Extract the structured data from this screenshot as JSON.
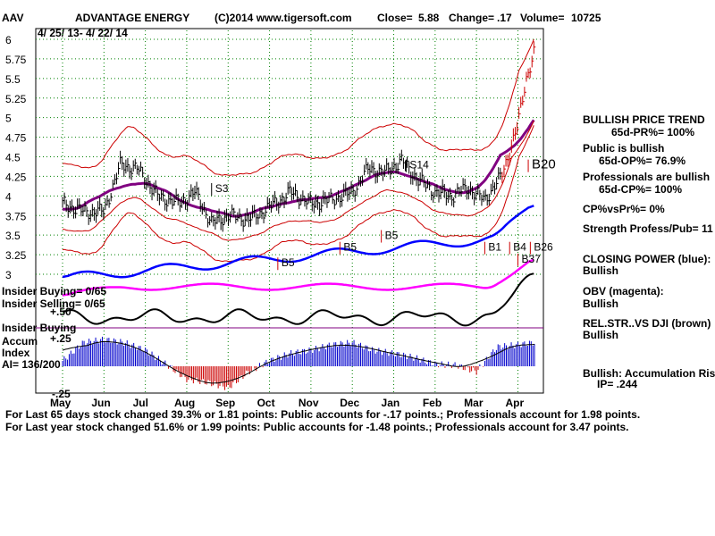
{
  "header": {
    "ticker": "AAV",
    "company": "ADVANTAGE ENERGY",
    "source": "(C)2014 www.tigersoft.com",
    "close_label": "Close=",
    "close_value": "5.88",
    "change_label": "Change=",
    "change_value": ".17",
    "volume_label": "Volume=",
    "volume_value": "10725",
    "date_range": "4/ 25/ 13- 4/ 22/ 14"
  },
  "signals": [
    "S3",
    "S14",
    "B20",
    "B5",
    "B5",
    "B5",
    "B1",
    "B4",
    "B26",
    "B37"
  ],
  "left_labels": {
    "insider_buying_ratio": "Insider Buying= 0/65",
    "insider_selling_ratio": "Insider Selling= 0/65",
    "insider_buying": "Insider Buying",
    "plus50": "+.50",
    "plus25": "+.25",
    "accum": "Accum",
    "index": "Index",
    "ai": "AI= 136/200",
    "minus25": "-.25"
  },
  "right_panel": [
    {
      "text": "BULLISH PRICE TREND",
      "bold": true
    },
    {
      "text": "65d-PR%= 100%",
      "bold": true
    },
    {
      "text": "Public is bullish",
      "bold": true
    },
    {
      "text": "65d-OP%= 76.9%",
      "bold": true
    },
    {
      "text": "Professionals are bullish",
      "bold": true
    },
    {
      "text": "65d-CP%= 100%",
      "bold": true
    },
    {
      "text": "CP%vsPr%= 0%",
      "bold": true
    },
    {
      "text": "Strength Profess/Pub= 11",
      "bold": true
    },
    {
      "text": "CLOSING POWER (blue):",
      "bold": true
    },
    {
      "text": "Bullish",
      "bold": true
    },
    {
      "text": "OBV (magenta):",
      "bold": true
    },
    {
      "text": "Bullish",
      "bold": true
    },
    {
      "text": "REL.STR..VS DJI (brown)",
      "bold": true
    },
    {
      "text": "Bullish",
      "bold": true
    },
    {
      "text": "Bullish: Accumulation Risi",
      "bold": true
    },
    {
      "text": "IP= .244",
      "bold": true
    }
  ],
  "footer": [
    "For Last 65 days stock changed  39.3% or  1.81 points:  Public accounts for -.17 points.;  Professionals account for  1.98 points.",
    "For Last year stock changed  51.6% or  1.99 points:  Public accounts for -1.48 points.;  Professionals account for  3.47 points."
  ],
  "colors": {
    "price": "#000000",
    "bands": "#cc0000",
    "ma": "#800080",
    "closing_power": "#0000ff",
    "obv": "#ff00ff",
    "rel_strength": "#000000",
    "accum_pos": "#0000cc",
    "accum_neg": "#cc0000",
    "grid": "#008000"
  },
  "chart_data": {
    "type": "line",
    "title": "ADVANTAGE ENERGY",
    "xlabel": "",
    "ylabel": "",
    "ylim": [
      3,
      6
    ],
    "yticks": [
      "6",
      "5.75",
      "5.5",
      "5.25",
      "5",
      "4.75",
      "4.5",
      "4.25",
      "4",
      "3.75",
      "3.5",
      "3.25",
      "3"
    ],
    "categories": [
      "May",
      "Jun",
      "Jul",
      "Aug",
      "Sep",
      "Oct",
      "Nov",
      "Dec",
      "Jan",
      "Feb",
      "Mar",
      "Apr"
    ],
    "grid": true,
    "series": [
      {
        "name": "Price",
        "x": [
          0,
          0.5,
          1,
          1.4,
          1.8,
          2.3,
          2.8,
          3.2,
          3.6,
          4.0,
          4.5,
          5.0,
          5.5,
          6.0,
          6.5,
          7.0,
          7.4,
          7.8,
          8.2,
          8.6,
          9.0,
          9.4,
          9.8,
          10.2,
          10.6,
          11.0,
          11.2,
          11.4
        ],
        "values": [
          3.9,
          3.8,
          3.8,
          4.4,
          4.35,
          4.0,
          3.9,
          4.05,
          3.65,
          3.75,
          3.7,
          3.85,
          4.05,
          3.9,
          3.95,
          4.05,
          4.35,
          4.3,
          4.45,
          4.2,
          4.05,
          4.0,
          4.1,
          3.95,
          4.25,
          4.9,
          5.5,
          5.85
        ]
      }
    ],
    "accumulation": {
      "name": "Accum Index",
      "ylim": [
        -0.25,
        0.5
      ],
      "x": [
        0,
        0.5,
        1,
        1.5,
        2,
        2.5,
        3,
        3.5,
        4,
        4.5,
        5,
        5.5,
        6,
        6.5,
        7,
        7.5,
        8,
        8.5,
        9,
        9.5,
        10,
        10.5,
        11,
        11.4
      ],
      "values": [
        0.05,
        0.22,
        0.25,
        0.22,
        0.15,
        0.02,
        -0.12,
        -0.15,
        -0.2,
        -0.05,
        0.05,
        0.12,
        0.15,
        0.2,
        0.22,
        0.15,
        0.12,
        0.08,
        0.02,
        0.01,
        -0.05,
        0.18,
        0.2,
        0.22
      ]
    },
    "signals": [
      {
        "label": "S3",
        "x": 3.6,
        "y": 4.05
      },
      {
        "label": "S14",
        "x": 8.3,
        "y": 4.35
      },
      {
        "label": "B20",
        "x": 11.25,
        "y": 4.35
      },
      {
        "label": "B5",
        "x": 5.2,
        "y": 3.1
      },
      {
        "label": "B5",
        "x": 6.7,
        "y": 3.3
      },
      {
        "label": "B5",
        "x": 7.7,
        "y": 3.45
      },
      {
        "label": "B1",
        "x": 10.2,
        "y": 3.3
      },
      {
        "label": "B4",
        "x": 10.8,
        "y": 3.3
      },
      {
        "label": "B26",
        "x": 11.3,
        "y": 3.3
      },
      {
        "label": "B37",
        "x": 11.0,
        "y": 3.15
      }
    ]
  }
}
